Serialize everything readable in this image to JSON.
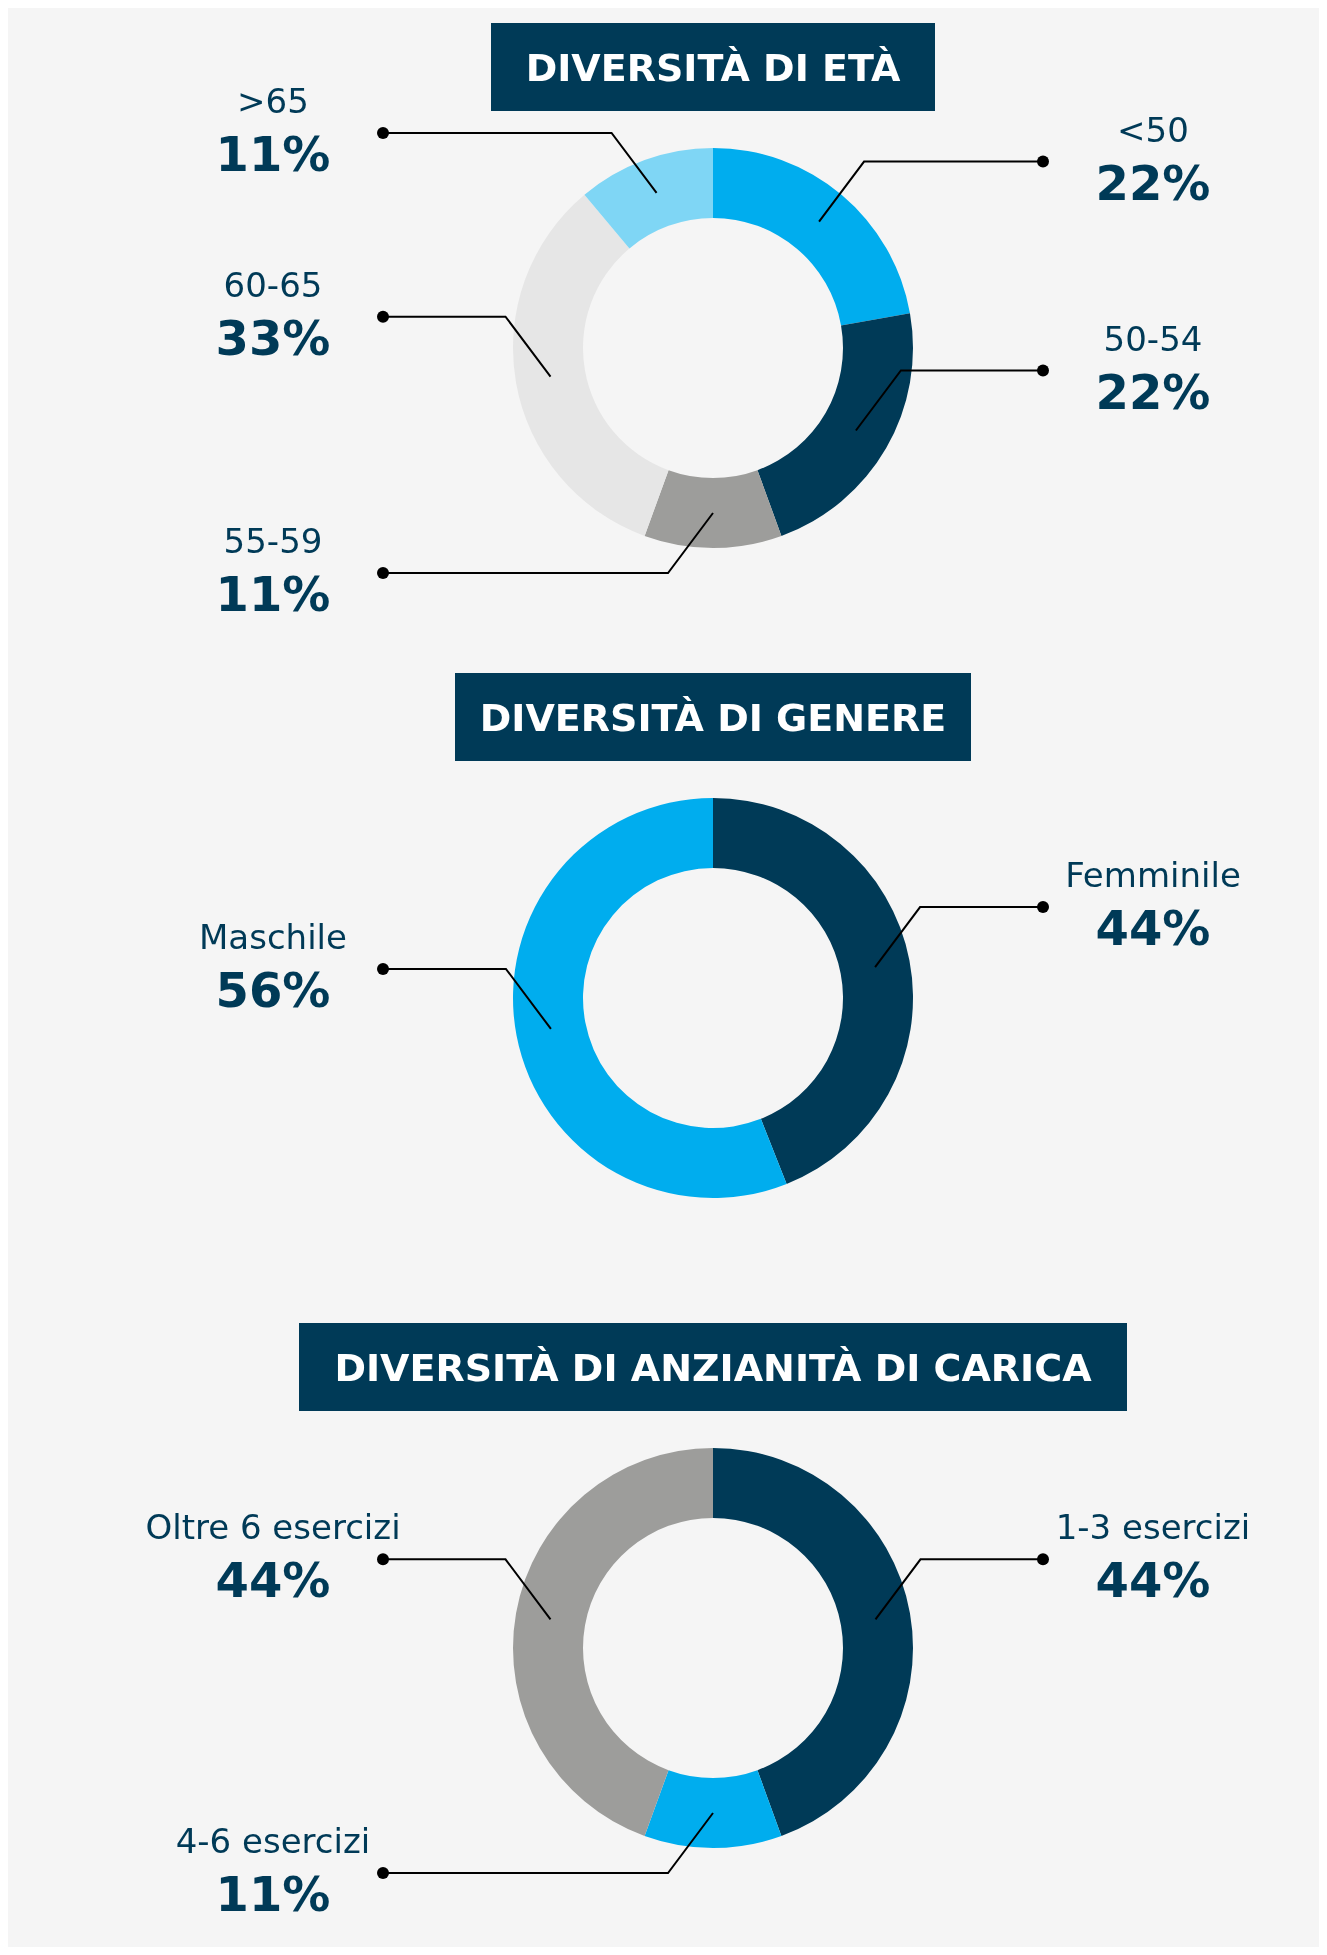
{
  "chart_data": [
    {
      "type": "donut",
      "title": "DIVERSITÀ DI ETÀ",
      "categories": [
        "<50",
        "50-54",
        "55-59",
        "60-65",
        ">65"
      ],
      "values": [
        22,
        22,
        11,
        33,
        11
      ],
      "value_labels": [
        "22%",
        "22%",
        "11%",
        "33%",
        "11%"
      ],
      "colors": [
        "#00adee",
        "#003a57",
        "#9d9d9b",
        "#e6e6e6",
        "#7fd6f5"
      ]
    },
    {
      "type": "donut",
      "title": "DIVERSITÀ DI GENERE",
      "categories": [
        "Femminile",
        "Maschile"
      ],
      "values": [
        44,
        56
      ],
      "value_labels": [
        "44%",
        "56%"
      ],
      "colors": [
        "#003a57",
        "#00adee"
      ]
    },
    {
      "type": "donut",
      "title": "DIVERSITÀ DI ANZIANITÀ DI CARICA",
      "categories": [
        "1-3 esercizi",
        "4-6 esercizi",
        "Oltre 6 esercizi"
      ],
      "values": [
        44,
        11,
        44
      ],
      "value_labels": [
        "44%",
        "11%",
        "44%"
      ],
      "colors": [
        "#003a57",
        "#00adee",
        "#9d9d9b"
      ]
    }
  ]
}
